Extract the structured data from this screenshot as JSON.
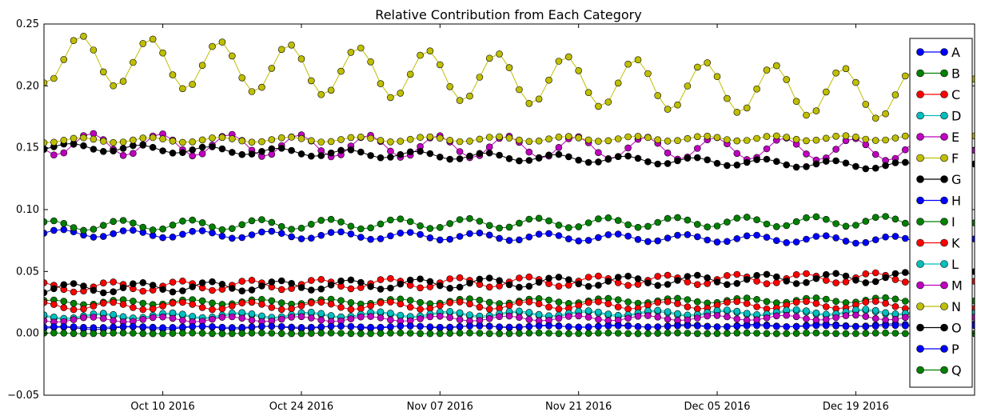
{
  "chart_data": {
    "type": "line",
    "title": "Relative Contribution from Each Category",
    "xlabel": "",
    "ylabel": "",
    "x_ticks": [
      "Oct 10 2016",
      "Oct 24 2016",
      "Nov 07 2016",
      "Nov 21 2016",
      "Dec 05 2016",
      "Dec 19 2016"
    ],
    "x_start": "2016-09-28",
    "x_end": "2016-12-31",
    "ylim": [
      -0.05,
      0.25
    ],
    "y_ticks": [
      "−0.05",
      "0.00",
      "0.05",
      "0.10",
      "0.15",
      "0.20",
      "0.25"
    ],
    "y_tick_values": [
      -0.05,
      0.0,
      0.05,
      0.1,
      0.15,
      0.2,
      0.25
    ],
    "grid": false,
    "legend_position": "right",
    "marker": "circle",
    "series": [
      {
        "name": "A",
        "color": "#0000ff",
        "base": 0.081,
        "end": 0.075,
        "amp": 0.003,
        "drop": 0.0
      },
      {
        "name": "B",
        "color": "#008000",
        "base": 0.087,
        "end": 0.091,
        "amp": 0.004,
        "drop": 0.0
      },
      {
        "name": "C",
        "color": "#ff0000",
        "base": 0.037,
        "end": 0.046,
        "amp": 0.004,
        "drop": 0.0
      },
      {
        "name": "D",
        "color": "#00bfbf",
        "base": 0.013,
        "end": 0.017,
        "amp": 0.002,
        "drop": 0.0
      },
      {
        "name": "E",
        "color": "#bf00bf",
        "base": 0.153,
        "end": 0.148,
        "amp": 0.009,
        "drop": 0.0
      },
      {
        "name": "F",
        "color": "#bfbf00",
        "base": 0.222,
        "end": 0.19,
        "amp": 0.02,
        "drop": 0.0
      },
      {
        "name": "G",
        "color": "#000000",
        "base": 0.151,
        "end": 0.134,
        "amp": 0.003,
        "drop": 0.0
      },
      {
        "name": "H",
        "color": "#0000ff",
        "base": 0.004,
        "end": 0.007,
        "amp": 0.001,
        "drop": 0.0
      },
      {
        "name": "I",
        "color": "#008000",
        "base": 0.025,
        "end": 0.027,
        "amp": 0.002,
        "drop": 0.0
      },
      {
        "name": "K",
        "color": "#ff0000",
        "base": 0.022,
        "end": 0.023,
        "amp": 0.003,
        "drop": 0.0
      },
      {
        "name": "L",
        "color": "#00bfbf",
        "base": 0.014,
        "end": 0.018,
        "amp": 0.002,
        "drop": 0.0
      },
      {
        "name": "M",
        "color": "#bf00bf",
        "base": 0.011,
        "end": 0.013,
        "amp": 0.002,
        "drop": 0.0
      },
      {
        "name": "N",
        "color": "#bfbf00",
        "base": 0.156,
        "end": 0.158,
        "amp": 0.002,
        "drop": 0.0
      },
      {
        "name": "O",
        "color": "#000000",
        "base": 0.036,
        "end": 0.046,
        "amp": 0.004,
        "drop": 0.0
      },
      {
        "name": "P",
        "color": "#0000ff",
        "base": 0.005,
        "end": 0.006,
        "amp": 0.0005,
        "drop": 0.0
      },
      {
        "name": "Q",
        "color": "#008000",
        "base": 0.0,
        "end": 0.0,
        "amp": 0.0003,
        "drop": 0.0
      }
    ]
  }
}
